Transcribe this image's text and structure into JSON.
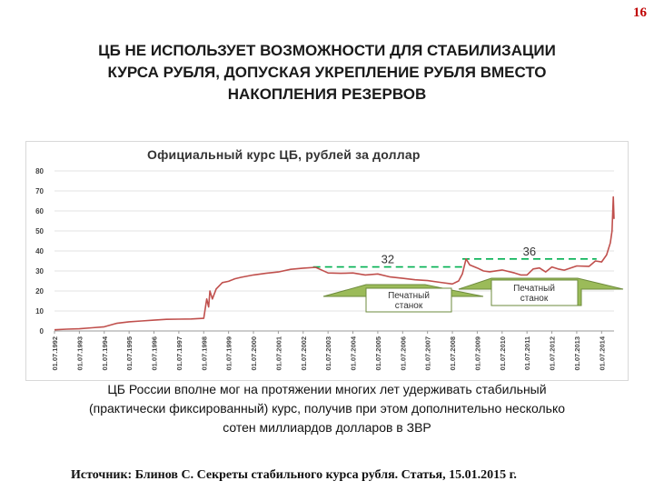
{
  "page_number": "16",
  "title_lines": [
    "ЦБ НЕ ИСПОЛЬЗУЕТ ВОЗМОЖНОСТИ ДЛЯ СТАБИЛИЗАЦИИ",
    "КУРСА РУБЛЯ, ДОПУСКАЯ УКРЕПЛЕНИЕ РУБЛЯ ВМЕСТО",
    "НАКОПЛЕНИЯ РЕЗЕРВОВ"
  ],
  "caption_lines": [
    "ЦБ России вполне мог на протяжении многих лет удерживать стабильный",
    "(практически фиксированный) курс, получив при этом дополнительно несколько",
    "сотен миллиардов долларов в ЗВР"
  ],
  "source": "Источник: Блинов С. Секреты стабильного курса рубля. Статья, 15.01.2015 г.",
  "chart_data": {
    "type": "line",
    "title": "Официальный курс ЦБ, рублей за доллар",
    "xlabel": "",
    "ylabel": "",
    "ylim": [
      0,
      80
    ],
    "yticks": [
      0,
      10,
      20,
      30,
      40,
      50,
      60,
      70,
      80
    ],
    "xlim": [
      1992.5,
      2015.0
    ],
    "x_tick_labels": [
      "01.07.1992",
      "01.07.1993",
      "01.07.1994",
      "01.07.1995",
      "01.07.1996",
      "01.07.1997",
      "01.07.1998",
      "01.07.1999",
      "01.07.2000",
      "01.07.2001",
      "01.07.2002",
      "01.07.2003",
      "01.07.2004",
      "01.07.2005",
      "01.07.2006",
      "01.07.2007",
      "01.07.2008",
      "01.07.2009",
      "01.07.2010",
      "01.07.2011",
      "01.07.2012",
      "01.07.2013",
      "01.07.2014"
    ],
    "grid": "horizontal",
    "line_color": "#c0504d",
    "series": [
      {
        "x": [
          1992.5,
          1993.0,
          1993.5,
          1994.0,
          1994.5,
          1995.0,
          1995.5,
          1996.0,
          1996.5,
          1997.0,
          1997.5,
          1998.0,
          1998.5,
          1998.62,
          1998.7,
          1998.75,
          1998.85,
          1999.0,
          1999.25,
          1999.5,
          1999.75,
          2000.0,
          2000.5,
          2001.0,
          2001.5,
          2002.0,
          2002.5,
          2003.0,
          2003.5,
          2004.0,
          2004.5,
          2005.0,
          2005.5,
          2006.0,
          2006.5,
          2007.0,
          2007.5,
          2008.0,
          2008.5,
          2008.75,
          2008.9,
          2009.05,
          2009.2,
          2009.5,
          2009.75,
          2010.0,
          2010.5,
          2011.0,
          2011.25,
          2011.5,
          2011.75,
          2012.0,
          2012.25,
          2012.5,
          2012.75,
          2013.0,
          2013.5,
          2014.0,
          2014.25,
          2014.5,
          2014.7,
          2014.85,
          2014.92,
          2014.97,
          2015.0
        ],
        "y": [
          0.6,
          0.9,
          1.1,
          1.6,
          2.1,
          3.8,
          4.6,
          5.0,
          5.4,
          5.8,
          5.9,
          6.0,
          6.3,
          16.0,
          12.0,
          20.0,
          16.0,
          21.0,
          24.2,
          24.8,
          26.1,
          26.8,
          28.0,
          28.8,
          29.5,
          30.8,
          31.4,
          31.8,
          29.0,
          28.8,
          29.0,
          28.0,
          28.5,
          27.0,
          26.3,
          25.6,
          25.2,
          24.3,
          23.5,
          25.0,
          28.5,
          36.0,
          33.0,
          31.5,
          30.0,
          29.6,
          30.5,
          29.0,
          28.0,
          28.0,
          31.0,
          31.5,
          29.5,
          32.0,
          31.0,
          30.4,
          32.5,
          32.3,
          35.0,
          34.5,
          38.0,
          44.0,
          50.0,
          67.0,
          56.0
        ]
      }
    ],
    "annotations": [
      {
        "text": "32",
        "level_y": 32,
        "x_from": 2002.9,
        "x_to": 2008.9,
        "style": "dashed",
        "color": "#00b050"
      },
      {
        "text": "36",
        "level_y": 36,
        "x_from": 2008.9,
        "x_to": 2014.3,
        "style": "dashed",
        "color": "#00b050"
      },
      {
        "text": "Печатный станок",
        "shape": "arrow"
      },
      {
        "text": "Печатный станок",
        "shape": "arrow"
      }
    ]
  }
}
